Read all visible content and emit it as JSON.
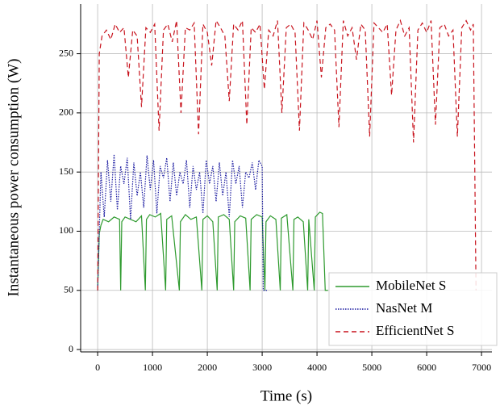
{
  "chart_data": {
    "type": "line",
    "x_label": "Time (s)",
    "y_label": "Instantaneous power consumption (W)",
    "xlim": [
      -310,
      7190
    ],
    "ylim": [
      -2,
      292
    ],
    "xticks": [
      0,
      1000,
      2000,
      3000,
      4000,
      5000,
      6000,
      7000
    ],
    "yticks": [
      0,
      50,
      100,
      150,
      200,
      250
    ],
    "grid": true,
    "legend": "lower right",
    "series": [
      {
        "name": "MobileNet S",
        "color": "#2e9a2e",
        "line_style": "solid",
        "x": [
          0,
          30,
          60,
          100,
          200,
          300,
          400,
          420,
          440,
          500,
          600,
          700,
          800,
          870,
          890,
          950,
          1050,
          1150,
          1240,
          1260,
          1350,
          1490,
          1510,
          1600,
          1700,
          1800,
          1900,
          1920,
          2000,
          2100,
          2180,
          2200,
          2300,
          2400,
          2480,
          2500,
          2600,
          2700,
          2780,
          2800,
          2900,
          3000,
          3050,
          3070,
          3150,
          3250,
          3330,
          3350,
          3450,
          3560,
          3580,
          3650,
          3750,
          3830,
          3850,
          3950,
          3970,
          4050,
          4100,
          4150,
          4200
        ],
        "values": [
          50,
          98,
          105,
          110,
          108,
          112,
          110,
          50,
          108,
          112,
          110,
          108,
          113,
          50,
          110,
          114,
          112,
          115,
          50,
          110,
          113,
          50,
          108,
          114,
          110,
          112,
          50,
          110,
          113,
          108,
          50,
          112,
          114,
          110,
          50,
          108,
          113,
          111,
          50,
          110,
          114,
          112,
          50,
          108,
          113,
          110,
          50,
          111,
          114,
          50,
          110,
          112,
          108,
          50,
          110,
          50,
          112,
          116,
          115,
          50,
          50
        ]
      },
      {
        "name": "NasNet M",
        "color": "#1a1aa0",
        "line_style": "dotted",
        "x": [
          0,
          30,
          60,
          120,
          180,
          240,
          300,
          360,
          420,
          480,
          540,
          600,
          660,
          720,
          780,
          840,
          900,
          960,
          1020,
          1080,
          1140,
          1200,
          1260,
          1320,
          1380,
          1440,
          1500,
          1560,
          1620,
          1680,
          1740,
          1800,
          1860,
          1920,
          1980,
          2040,
          2100,
          2160,
          2220,
          2280,
          2340,
          2400,
          2460,
          2520,
          2580,
          2640,
          2700,
          2760,
          2820,
          2880,
          2940,
          3000,
          3020,
          3100
        ],
        "values": [
          50,
          100,
          150,
          112,
          160,
          125,
          165,
          118,
          155,
          140,
          162,
          110,
          158,
          130,
          150,
          120,
          164,
          135,
          160,
          115,
          155,
          145,
          162,
          125,
          158,
          130,
          150,
          140,
          160,
          120,
          155,
          135,
          150,
          115,
          160,
          140,
          155,
          125,
          158,
          130,
          150,
          112,
          160,
          140,
          155,
          120,
          150,
          145,
          158,
          135,
          160,
          155,
          50,
          50
        ]
      },
      {
        "name": "EfficientNet S",
        "color": "#c8141e",
        "line_style": "dashed",
        "x": [
          0,
          30,
          80,
          160,
          240,
          320,
          400,
          480,
          560,
          640,
          720,
          800,
          880,
          960,
          1040,
          1120,
          1200,
          1280,
          1360,
          1440,
          1520,
          1600,
          1680,
          1760,
          1840,
          1920,
          2000,
          2080,
          2160,
          2240,
          2320,
          2400,
          2480,
          2560,
          2640,
          2720,
          2800,
          2880,
          2960,
          3040,
          3120,
          3200,
          3280,
          3360,
          3440,
          3520,
          3600,
          3680,
          3760,
          3840,
          3920,
          4000,
          4080,
          4160,
          4240,
          4320,
          4400,
          4480,
          4560,
          4640,
          4720,
          4800,
          4880,
          4960,
          5040,
          5120,
          5200,
          5280,
          5360,
          5440,
          5520,
          5600,
          5680,
          5760,
          5840,
          5920,
          6000,
          6080,
          6160,
          6240,
          6320,
          6400,
          6480,
          6560,
          6640,
          6720,
          6800,
          6850,
          6900
        ],
        "values": [
          50,
          250,
          265,
          270,
          262,
          275,
          268,
          272,
          230,
          270,
          265,
          205,
          272,
          268,
          275,
          185,
          270,
          275,
          260,
          278,
          200,
          272,
          270,
          276,
          182,
          275,
          268,
          240,
          278,
          272,
          265,
          210,
          275,
          270,
          278,
          190,
          272,
          268,
          275,
          220,
          270,
          265,
          278,
          200,
          272,
          275,
          268,
          185,
          276,
          270,
          262,
          278,
          230,
          272,
          275,
          270,
          188,
          278,
          265,
          272,
          245,
          275,
          270,
          180,
          276,
          272,
          268,
          275,
          215,
          270,
          278,
          265,
          272,
          175,
          270,
          276,
          268,
          278,
          190,
          272,
          275,
          265,
          270,
          180,
          272,
          278,
          270,
          275,
          50
        ]
      }
    ]
  }
}
